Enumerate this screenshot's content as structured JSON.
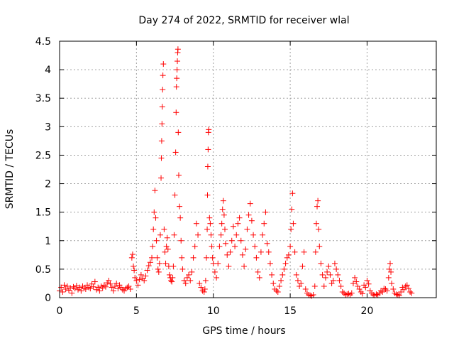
{
  "chart_data": {
    "type": "scatter",
    "title": "Day 274 of 2022, SRMTID for receiver wlal",
    "xlabel": "GPS time / hours",
    "ylabel": "SRMTID / TECUs",
    "xlim": [
      0,
      24.5
    ],
    "ylim": [
      0,
      4.5
    ],
    "grid": true,
    "marker": "plus",
    "series_color": "#ff0000",
    "x_ticks": [
      {
        "value": 0,
        "label": "0"
      },
      {
        "value": 5,
        "label": "5"
      },
      {
        "value": 10,
        "label": "10"
      },
      {
        "value": 15,
        "label": "15"
      },
      {
        "value": 20,
        "label": "20"
      }
    ],
    "y_ticks": [
      {
        "value": 0,
        "label": "0"
      },
      {
        "value": 0.5,
        "label": "0.5"
      },
      {
        "value": 1,
        "label": "1"
      },
      {
        "value": 1.5,
        "label": "1.5"
      },
      {
        "value": 2,
        "label": "2"
      },
      {
        "value": 2.5,
        "label": "2.5"
      },
      {
        "value": 3,
        "label": "3"
      },
      {
        "value": 3.5,
        "label": "3.5"
      },
      {
        "value": 4,
        "label": "4"
      },
      {
        "value": 4.5,
        "label": "4.5"
      }
    ],
    "series": [
      {
        "name": "SRMTID",
        "x": [
          0.0,
          0.1,
          0.2,
          0.3,
          0.4,
          0.5,
          0.6,
          0.7,
          0.8,
          0.9,
          1.0,
          1.1,
          1.2,
          1.3,
          1.4,
          1.5,
          1.6,
          1.7,
          1.8,
          1.9,
          2.0,
          2.1,
          2.2,
          2.3,
          2.4,
          2.5,
          2.6,
          2.7,
          2.8,
          2.9,
          3.0,
          3.1,
          3.2,
          3.3,
          3.4,
          3.5,
          3.6,
          3.7,
          3.8,
          3.9,
          4.0,
          4.1,
          4.2,
          4.3,
          4.4,
          4.5,
          4.6,
          4.7,
          4.75,
          4.8,
          4.85,
          4.9,
          5.0,
          5.1,
          5.2,
          5.3,
          5.4,
          5.5,
          5.6,
          5.7,
          5.8,
          5.9,
          6.0,
          6.05,
          6.1,
          6.15,
          6.2,
          6.25,
          6.3,
          6.35,
          6.4,
          6.45,
          6.5,
          6.55,
          6.6,
          6.62,
          6.64,
          6.66,
          6.68,
          6.7,
          6.72,
          6.75,
          6.8,
          6.85,
          6.9,
          6.95,
          7.0,
          7.05,
          7.1,
          7.15,
          7.2,
          7.25,
          7.3,
          7.35,
          7.4,
          7.45,
          7.5,
          7.55,
          7.58,
          7.6,
          7.62,
          7.64,
          7.66,
          7.68,
          7.7,
          7.72,
          7.75,
          7.8,
          7.85,
          7.9,
          7.95,
          8.0,
          8.1,
          8.2,
          8.3,
          8.4,
          8.5,
          8.6,
          8.7,
          8.8,
          8.9,
          9.0,
          9.1,
          9.2,
          9.3,
          9.4,
          9.45,
          9.5,
          9.55,
          9.6,
          9.62,
          9.64,
          9.66,
          9.68,
          9.7,
          9.75,
          9.8,
          9.85,
          9.9,
          9.95,
          10.0,
          10.1,
          10.2,
          10.3,
          10.4,
          10.5,
          10.55,
          10.6,
          10.65,
          10.7,
          10.75,
          10.8,
          10.9,
          11.0,
          11.1,
          11.2,
          11.3,
          11.4,
          11.5,
          11.6,
          11.7,
          11.8,
          11.9,
          12.0,
          12.1,
          12.2,
          12.3,
          12.4,
          12.5,
          12.6,
          12.7,
          12.8,
          12.9,
          13.0,
          13.1,
          13.2,
          13.3,
          13.4,
          13.5,
          13.6,
          13.7,
          13.8,
          13.9,
          14.0,
          14.1,
          14.2,
          14.3,
          14.4,
          14.5,
          14.6,
          14.7,
          14.8,
          14.9,
          15.0,
          15.05,
          15.1,
          15.15,
          15.2,
          15.3,
          15.4,
          15.5,
          15.6,
          15.7,
          15.8,
          15.9,
          16.0,
          16.1,
          16.2,
          16.3,
          16.4,
          16.5,
          16.6,
          16.65,
          16.7,
          16.75,
          16.8,
          16.85,
          16.9,
          17.0,
          17.1,
          17.2,
          17.3,
          17.4,
          17.5,
          17.6,
          17.7,
          17.8,
          17.9,
          18.0,
          18.1,
          18.2,
          18.3,
          18.4,
          18.5,
          18.6,
          18.7,
          18.8,
          18.9,
          19.0,
          19.1,
          19.2,
          19.3,
          19.4,
          19.5,
          19.6,
          19.7,
          19.8,
          19.9,
          20.0,
          20.1,
          20.2,
          20.3,
          20.4,
          20.5,
          20.6,
          20.7,
          20.8,
          20.9,
          21.0,
          21.1,
          21.2,
          21.3,
          21.4,
          21.45,
          21.5,
          21.55,
          21.6,
          21.7,
          21.8,
          21.9,
          22.0,
          22.1,
          22.2,
          22.3,
          22.4,
          22.5,
          22.6,
          22.7,
          22.8,
          22.9
        ],
        "y": [
          0.12,
          0.18,
          0.1,
          0.22,
          0.15,
          0.2,
          0.13,
          0.17,
          0.08,
          0.19,
          0.16,
          0.21,
          0.14,
          0.18,
          0.12,
          0.2,
          0.17,
          0.15,
          0.22,
          0.18,
          0.16,
          0.24,
          0.19,
          0.28,
          0.14,
          0.18,
          0.12,
          0.2,
          0.17,
          0.22,
          0.19,
          0.26,
          0.3,
          0.24,
          0.18,
          0.12,
          0.2,
          0.25,
          0.16,
          0.22,
          0.18,
          0.14,
          0.12,
          0.16,
          0.18,
          0.2,
          0.15,
          0.7,
          0.76,
          0.55,
          0.48,
          0.35,
          0.3,
          0.22,
          0.32,
          0.4,
          0.34,
          0.3,
          0.38,
          0.48,
          0.56,
          0.62,
          0.7,
          0.9,
          1.2,
          1.5,
          1.88,
          1.4,
          1.0,
          0.7,
          0.5,
          0.45,
          0.6,
          1.1,
          2.1,
          2.45,
          2.75,
          3.05,
          3.35,
          3.65,
          3.9,
          4.1,
          1.2,
          0.8,
          0.6,
          0.9,
          1.05,
          0.85,
          0.55,
          0.4,
          0.35,
          0.3,
          0.28,
          0.35,
          0.55,
          1.1,
          1.8,
          2.55,
          3.25,
          3.7,
          3.85,
          4.0,
          4.15,
          4.3,
          4.36,
          2.9,
          2.15,
          1.6,
          1.4,
          1.0,
          0.7,
          0.5,
          0.3,
          0.25,
          0.35,
          0.4,
          0.3,
          0.45,
          0.7,
          0.9,
          1.3,
          1.1,
          0.25,
          0.18,
          0.12,
          0.1,
          0.15,
          0.3,
          0.7,
          1.2,
          1.8,
          2.3,
          2.6,
          2.9,
          2.95,
          1.4,
          1.3,
          1.1,
          0.9,
          0.7,
          0.6,
          0.45,
          0.35,
          0.6,
          0.9,
          1.1,
          1.3,
          1.55,
          1.7,
          1.45,
          1.2,
          0.95,
          0.75,
          0.55,
          0.8,
          1.0,
          1.25,
          0.9,
          1.1,
          1.3,
          1.4,
          1.0,
          0.75,
          0.55,
          0.85,
          1.2,
          1.45,
          1.65,
          1.35,
          1.1,
          0.9,
          0.7,
          0.45,
          0.35,
          0.8,
          1.1,
          1.3,
          1.5,
          0.95,
          0.8,
          0.6,
          0.4,
          0.25,
          0.15,
          0.12,
          0.1,
          0.2,
          0.3,
          0.4,
          0.5,
          0.6,
          0.7,
          0.75,
          0.9,
          1.2,
          1.55,
          1.83,
          1.3,
          0.8,
          0.4,
          0.3,
          0.2,
          0.25,
          0.55,
          0.8,
          0.15,
          0.08,
          0.05,
          0.04,
          0.03,
          0.05,
          0.2,
          0.8,
          1.3,
          1.6,
          1.7,
          1.2,
          0.9,
          0.6,
          0.4,
          0.2,
          0.35,
          0.45,
          0.55,
          0.4,
          0.25,
          0.3,
          0.6,
          0.5,
          0.4,
          0.3,
          0.2,
          0.1,
          0.08,
          0.05,
          0.06,
          0.07,
          0.05,
          0.08,
          0.25,
          0.35,
          0.28,
          0.2,
          0.15,
          0.1,
          0.07,
          0.22,
          0.18,
          0.3,
          0.24,
          0.12,
          0.08,
          0.05,
          0.04,
          0.06,
          0.05,
          0.08,
          0.12,
          0.1,
          0.16,
          0.15,
          0.12,
          0.35,
          0.5,
          0.6,
          0.45,
          0.25,
          0.15,
          0.08,
          0.06,
          0.05,
          0.04,
          0.1,
          0.18,
          0.14,
          0.2,
          0.22,
          0.16,
          0.1,
          0.08
        ]
      }
    ]
  }
}
